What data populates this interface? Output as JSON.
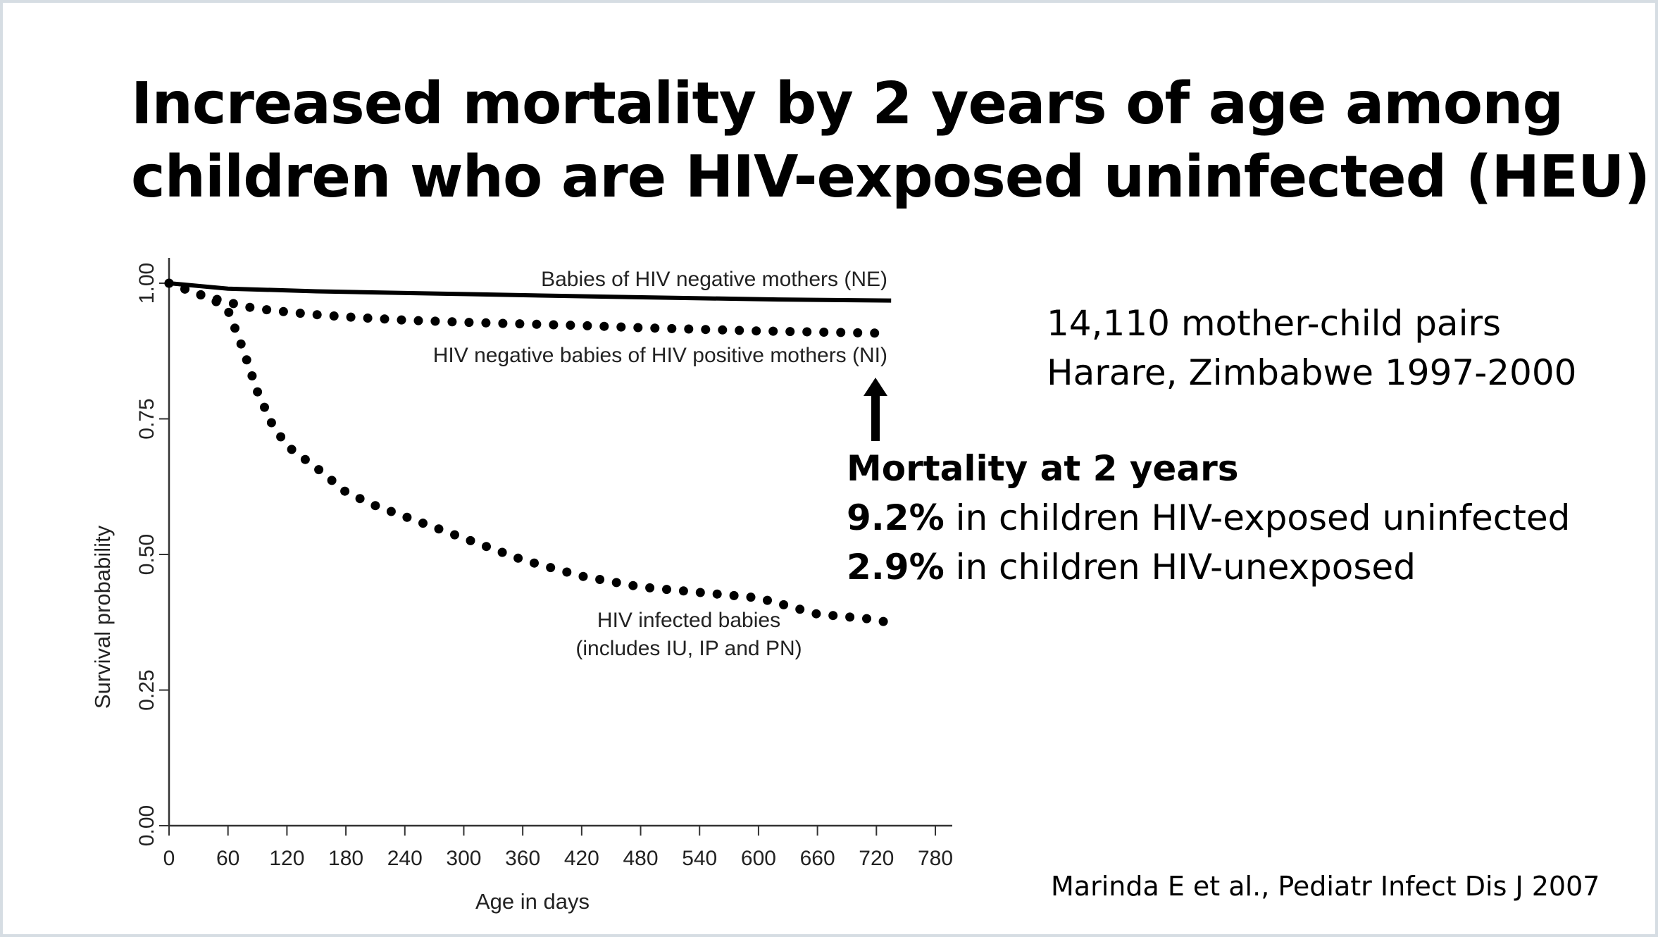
{
  "title": {
    "line1": "Increased mortality by 2 years of age among",
    "line2": "children who are HIV-exposed uninfected (HEU)"
  },
  "study_info": {
    "line1": "14,110 mother-child pairs",
    "line2": "Harare, Zimbabwe 1997-2000"
  },
  "mortality": {
    "heading": "Mortality at 2 years",
    "heu_value": "9.2%",
    "heu_text": " in children HIV-exposed uninfected",
    "unexposed_value": "2.9%",
    "unexposed_text": " in children HIV-unexposed"
  },
  "citation": "Marinda E et al., Pediatr Infect Dis J 2007",
  "arrow_icon": "up-arrow-icon",
  "chart_data": {
    "type": "line",
    "xlabel": "Age in days",
    "ylabel": "Survival probability",
    "xlim": [
      0,
      780
    ],
    "ylim": [
      0,
      1
    ],
    "xticks": [
      "0",
      "60",
      "120",
      "180",
      "240",
      "300",
      "360",
      "420",
      "480",
      "540",
      "600",
      "660",
      "720",
      "780"
    ],
    "yticks": [
      "0.00",
      "0.25",
      "0.50",
      "0.75",
      "1.00"
    ],
    "grid": false,
    "series": [
      {
        "name": "Babies of HIV negative mothers (NE)",
        "style": "solid",
        "x": [
          0,
          30,
          60,
          150,
          300,
          450,
          620,
          735
        ],
        "y": [
          1.0,
          0.995,
          0.99,
          0.985,
          0.98,
          0.975,
          0.97,
          0.968
        ]
      },
      {
        "name": "HIV negative babies of HIV positive mothers (NI)",
        "style": "dotted",
        "x": [
          0,
          15,
          30,
          45,
          60,
          75,
          90,
          105,
          120,
          150,
          180,
          240,
          300,
          360,
          420,
          480,
          540,
          600,
          660,
          720,
          735
        ],
        "y": [
          1.0,
          0.99,
          0.98,
          0.972,
          0.965,
          0.958,
          0.953,
          0.95,
          0.947,
          0.942,
          0.938,
          0.932,
          0.928,
          0.925,
          0.922,
          0.918,
          0.915,
          0.912,
          0.91,
          0.908,
          0.907
        ]
      },
      {
        "name": "HIV infected babies",
        "label_line2": "(includes IU, IP and PN)",
        "style": "dotted",
        "x": [
          0,
          15,
          30,
          45,
          60,
          75,
          90,
          105,
          120,
          150,
          180,
          210,
          240,
          300,
          360,
          420,
          480,
          540,
          600,
          660,
          690,
          720,
          730
        ],
        "y": [
          1.0,
          0.99,
          0.98,
          0.97,
          0.95,
          0.88,
          0.8,
          0.74,
          0.7,
          0.66,
          0.615,
          0.59,
          0.57,
          0.53,
          0.49,
          0.46,
          0.44,
          0.43,
          0.42,
          0.39,
          0.385,
          0.38,
          0.375
        ]
      }
    ]
  }
}
